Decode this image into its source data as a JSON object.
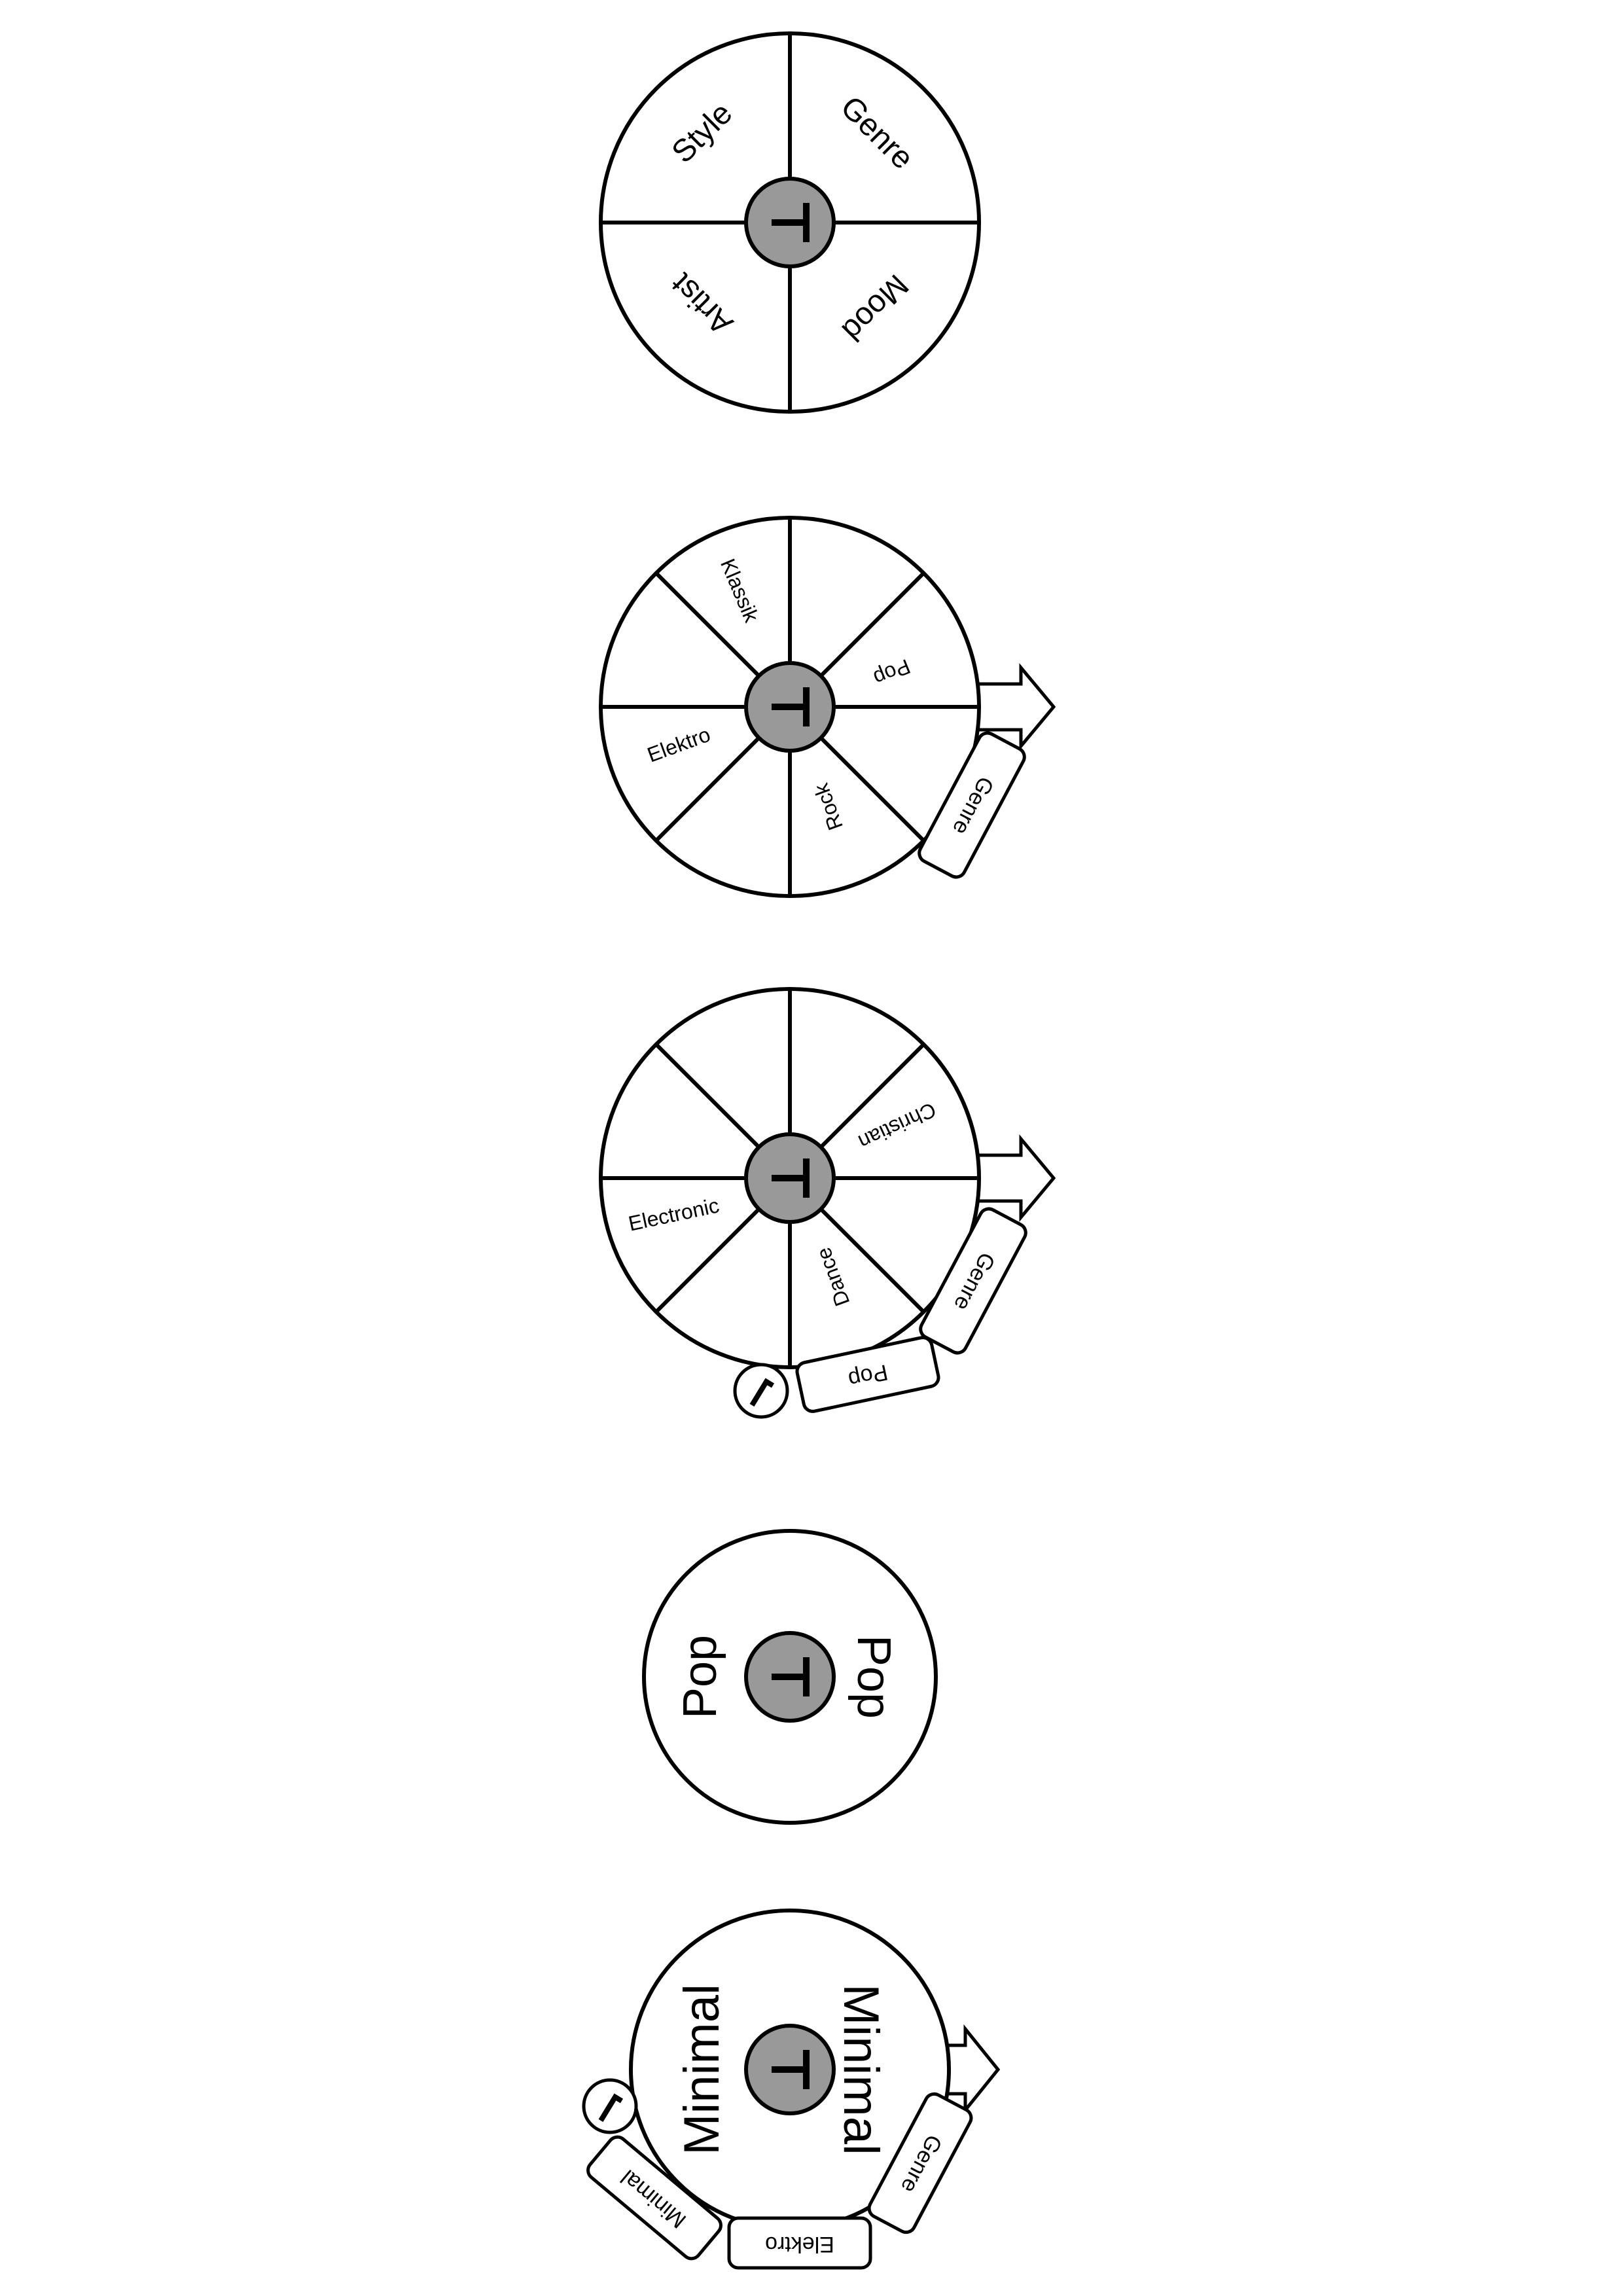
{
  "colors": {
    "hub_fill": "#999999",
    "stroke": "#000000",
    "background": "#ffffff"
  },
  "hub_letter": "T",
  "icons": {
    "hub": "t-glyph-icon",
    "arrow": "right-arrow-icon",
    "check": "checkmark-icon"
  },
  "wheel1": {
    "segments": [
      "Style",
      "Genre",
      "Mood",
      "Artist"
    ]
  },
  "wheel2": {
    "segments": [
      "Klassik",
      "Pop",
      "Rock",
      "Elektro"
    ],
    "tab": "Genre"
  },
  "wheel3": {
    "segments": [
      "Christian",
      "Dance",
      "Electronic"
    ],
    "tabs": [
      "Genre",
      "Pop"
    ]
  },
  "wheel4": {
    "labels": [
      "Pop",
      "Pop"
    ]
  },
  "wheel5": {
    "labels": [
      "Minimal",
      "Minimal"
    ],
    "tabs": [
      "Genre",
      "Elektro",
      "Minimal"
    ]
  }
}
